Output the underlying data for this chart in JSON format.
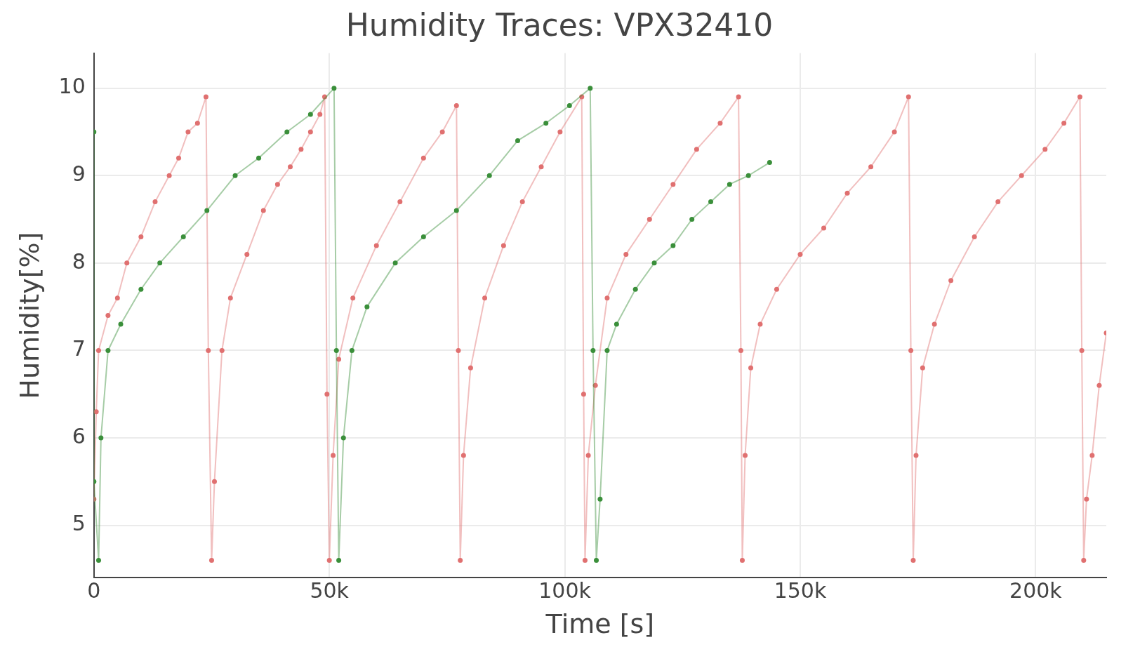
{
  "chart_data": {
    "type": "line",
    "title": "Humidity Traces: VPX32410",
    "xlabel": "Time [s]",
    "ylabel": "Humidity[%]",
    "xlim": [
      0,
      215000
    ],
    "xticks": [
      0,
      {
        "value": 50000,
        "label": "50k"
      },
      {
        "value": 100000,
        "label": "100k"
      },
      {
        "value": 150000,
        "label": "150k"
      },
      {
        "value": 200000,
        "label": "200k"
      }
    ],
    "ylim": [
      4.4,
      10.4
    ],
    "yticks": [
      5,
      6,
      7,
      8,
      9,
      10
    ],
    "grid": true,
    "legend": false,
    "marker": "circle",
    "line_style": "solid",
    "series": [
      {
        "color": "#e07070",
        "x": [
          0,
          500,
          1000,
          3000,
          5000,
          7000,
          10000,
          13000,
          16000,
          18000,
          20000,
          22000,
          23800,
          24300,
          25000,
          25600,
          27200,
          29000,
          32500,
          36000,
          39000,
          41700,
          44000,
          46000,
          48000,
          49000,
          49500,
          50000,
          50800,
          52000,
          55000,
          60000,
          65000,
          70000,
          74000,
          77000,
          77400,
          77800,
          78500,
          80000,
          83000,
          87000,
          91000,
          95000,
          99000,
          103600,
          104000,
          104300,
          105000,
          106500,
          109000,
          113000,
          118000,
          123000,
          128000,
          133000,
          136900,
          137400,
          137700,
          138300,
          139500,
          141500,
          145000,
          150000,
          155000,
          160000,
          165000,
          170000,
          173000,
          173500,
          174000,
          174600,
          176000,
          178500,
          182000,
          187000,
          192000,
          197000,
          202000,
          206000,
          209400,
          209800,
          210200,
          210800,
          212000,
          213500,
          215000
        ],
        "values": [
          5.3,
          6.3,
          7.0,
          7.4,
          7.6,
          8.0,
          8.3,
          8.7,
          9.0,
          9.2,
          9.5,
          9.6,
          9.9,
          7.0,
          4.6,
          5.5,
          7.0,
          7.6,
          8.1,
          8.6,
          8.9,
          9.1,
          9.3,
          9.5,
          9.7,
          9.9,
          6.5,
          4.6,
          5.8,
          6.9,
          7.6,
          8.2,
          8.7,
          9.2,
          9.5,
          9.8,
          7.0,
          4.6,
          5.8,
          6.8,
          7.6,
          8.2,
          8.7,
          9.1,
          9.5,
          9.9,
          6.5,
          4.6,
          5.8,
          6.6,
          7.6,
          8.1,
          8.5,
          8.9,
          9.3,
          9.6,
          9.9,
          7.0,
          4.6,
          5.8,
          6.8,
          7.3,
          7.7,
          8.1,
          8.4,
          8.8,
          9.1,
          9.5,
          9.9,
          7.0,
          4.6,
          5.8,
          6.8,
          7.3,
          7.8,
          8.3,
          8.7,
          9.0,
          9.3,
          9.6,
          9.9,
          7.0,
          4.6,
          5.3,
          5.8,
          6.6,
          7.2
        ]
      },
      {
        "color": "#3a8f3a",
        "x": [
          0,
          0,
          1000,
          1500,
          3000,
          5700,
          10000,
          14000,
          19000,
          24000,
          30000,
          35000,
          41000,
          46000,
          51000,
          51500,
          52000,
          53000,
          54800,
          58000,
          64000,
          70000,
          77000,
          84000,
          90000,
          96000,
          101000,
          105400,
          106000,
          106700,
          107500,
          109000,
          111000,
          115000,
          119000,
          123000,
          127000,
          131000,
          135000,
          139000,
          143500
        ],
        "values": [
          9.5,
          5.5,
          4.6,
          6.0,
          7.0,
          7.3,
          7.7,
          8.0,
          8.3,
          8.6,
          9.0,
          9.2,
          9.5,
          9.7,
          10.0,
          7.0,
          4.6,
          6.0,
          7.0,
          7.5,
          8.0,
          8.3,
          8.6,
          9.0,
          9.4,
          9.6,
          9.8,
          10.0,
          7.0,
          4.6,
          5.3,
          7.0,
          7.3,
          7.7,
          8.0,
          8.2,
          8.5,
          8.7,
          8.9,
          9.0,
          9.15
        ]
      }
    ]
  }
}
